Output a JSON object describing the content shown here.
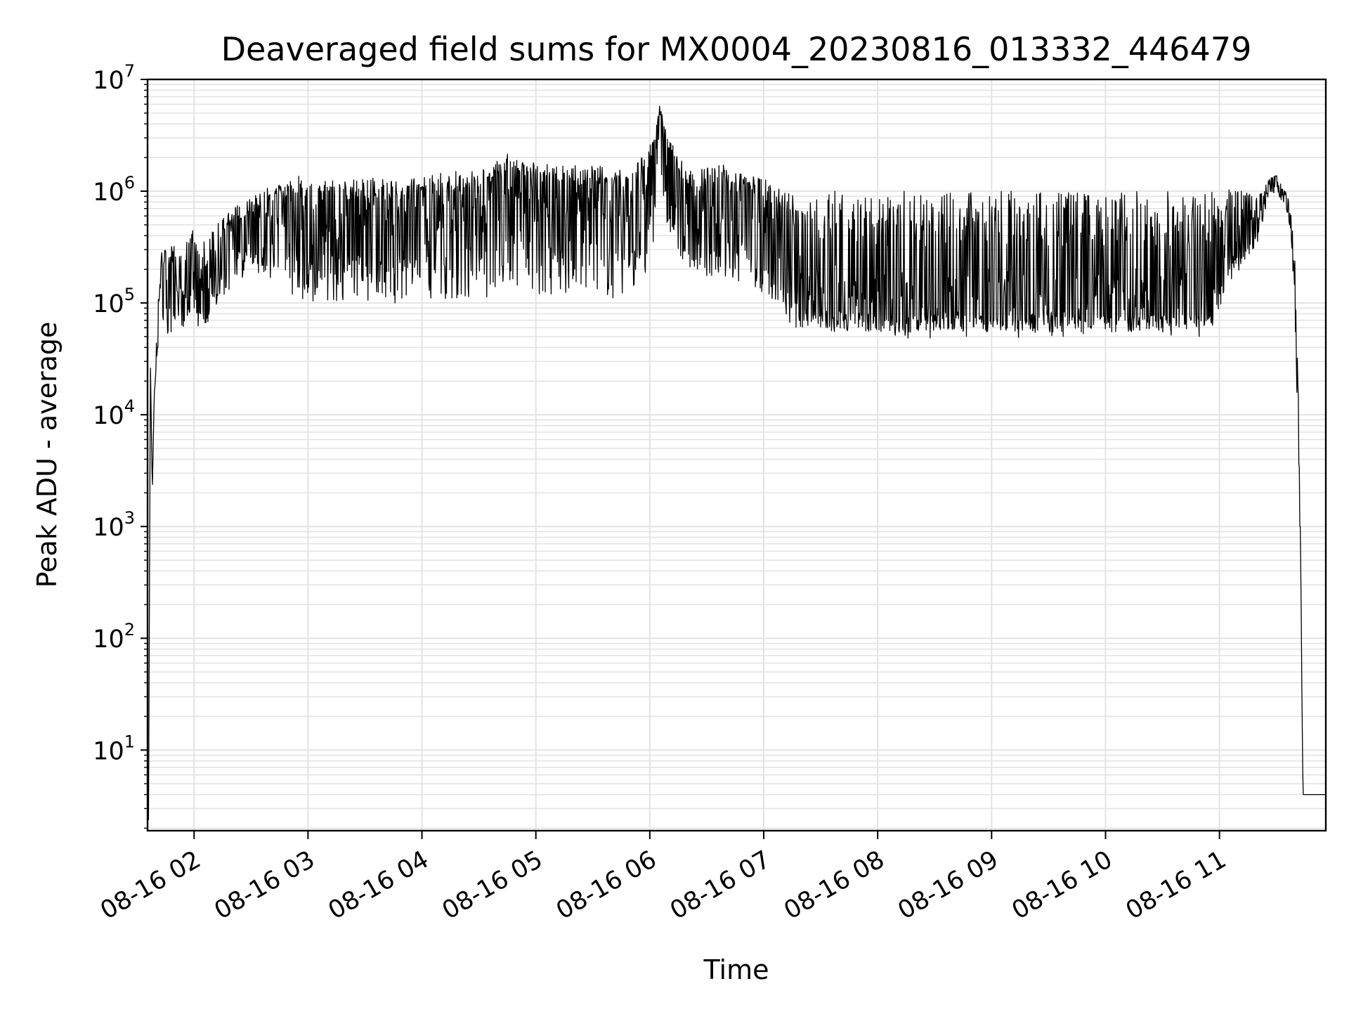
{
  "chart_data": {
    "type": "line",
    "title": "Deaveraged field sums for MX0004_20230816_013332_446479",
    "xlabel": "Time",
    "ylabel": "Peak ADU - average",
    "yscale": "log",
    "xlim": [
      "2023-08-16 01:35:30",
      "2023-08-16 11:56:00"
    ],
    "ylim": [
      1.9,
      10000000
    ],
    "grid": true,
    "line_color": "#000000",
    "x_ticks": [
      "08-16 02",
      "08-16 03",
      "08-16 04",
      "08-16 05",
      "08-16 06",
      "08-16 07",
      "08-16 08",
      "08-16 09",
      "08-16 10",
      "08-16 11"
    ],
    "y_ticks": [
      {
        "base": "10",
        "exp": "1"
      },
      {
        "base": "10",
        "exp": "2"
      },
      {
        "base": "10",
        "exp": "3"
      },
      {
        "base": "10",
        "exp": "4"
      },
      {
        "base": "10",
        "exp": "5"
      },
      {
        "base": "10",
        "exp": "6"
      },
      {
        "base": "10",
        "exp": "7"
      }
    ],
    "series": [
      {
        "x": [
          "2023-08-16 01:36:00",
          "2023-08-16 01:37:00",
          "2023-08-16 01:38:00",
          "2023-08-16 01:39:00",
          "2023-08-16 01:41:00",
          "2023-08-16 01:43:00",
          "2023-08-16 01:46:00",
          "2023-08-16 01:50:00",
          "2023-08-16 01:54:00",
          "2023-08-16 01:58:00",
          "2023-08-16 02:02:00",
          "2023-08-16 02:06:00",
          "2023-08-16 02:10:00",
          "2023-08-16 02:15:00",
          "2023-08-16 02:20:00",
          "2023-08-16 02:25:00",
          "2023-08-16 02:30:00",
          "2023-08-16 02:40:00",
          "2023-08-16 02:50:00",
          "2023-08-16 03:00:00",
          "2023-08-16 03:10:00",
          "2023-08-16 03:30:00",
          "2023-08-16 04:00:00",
          "2023-08-16 04:30:00",
          "2023-08-16 04:45:00",
          "2023-08-16 05:00:00",
          "2023-08-16 05:30:00",
          "2023-08-16 05:50:00",
          "2023-08-16 06:00:00",
          "2023-08-16 06:05:00",
          "2023-08-16 06:10:00",
          "2023-08-16 06:20:00",
          "2023-08-16 06:40:00",
          "2023-08-16 07:00:00",
          "2023-08-16 07:15:00",
          "2023-08-16 07:30:00",
          "2023-08-16 08:00:00",
          "2023-08-16 09:00:00",
          "2023-08-16 10:00:00",
          "2023-08-16 10:55:00",
          "2023-08-16 11:05:00",
          "2023-08-16 11:15:00",
          "2023-08-16 11:20:00",
          "2023-08-16 11:26:00",
          "2023-08-16 11:30:00",
          "2023-08-16 11:35:00",
          "2023-08-16 11:38:00",
          "2023-08-16 11:40:00",
          "2023-08-16 11:42:00",
          "2023-08-16 11:44:00",
          "2023-08-16 11:46:00",
          "2023-08-16 11:48:00",
          "2023-08-16 11:50:00",
          "2023-08-16 11:52:00",
          "2023-08-16 11:54:00",
          "2023-08-16 11:56:00"
        ],
        "y": [
          2,
          30000,
          2000,
          15000,
          60000,
          250000,
          120000,
          150000,
          100000,
          300000,
          120000,
          80000,
          150000,
          300000,
          400000,
          350000,
          500000,
          600000,
          700000,
          800000,
          600000,
          500000,
          550000,
          700000,
          1200000,
          900000,
          800000,
          700000,
          1000000,
          4000000,
          2000000,
          700000,
          800000,
          600000,
          150000,
          120000,
          100000,
          100000,
          100000,
          100000,
          300000,
          400000,
          500000,
          1200000,
          1300000,
          900000,
          500000,
          100000,
          5000,
          4,
          4,
          4,
          4,
          4,
          4,
          4
        ],
        "band_low": [
          2,
          30000,
          2000,
          15000,
          40000,
          80000,
          40000,
          60000,
          60000,
          80000,
          60000,
          60000,
          80000,
          100000,
          150000,
          150000,
          200000,
          150000,
          120000,
          100000,
          100000,
          100000,
          100000,
          100000,
          150000,
          120000,
          120000,
          100000,
          200000,
          800000,
          400000,
          200000,
          150000,
          120000,
          60000,
          55000,
          55000,
          55000,
          55000,
          55000,
          150000,
          250000,
          350000,
          900000,
          1000000,
          700000,
          300000,
          50000,
          2000,
          4,
          4,
          4,
          4,
          4,
          4,
          4
        ],
        "band_high": [
          2,
          30000,
          2000,
          15000,
          100000,
          300000,
          300000,
          350000,
          250000,
          500000,
          400000,
          350000,
          450000,
          600000,
          700000,
          800000,
          900000,
          1100000,
          1200000,
          1300000,
          1300000,
          1300000,
          1400000,
          1600000,
          2000000,
          1800000,
          1700000,
          1600000,
          2500000,
          6000000,
          3000000,
          1500000,
          1800000,
          1300000,
          1100000,
          1000000,
          1000000,
          1000000,
          1000000,
          1000000,
          1100000,
          1100000,
          900000,
          1300000,
          1400000,
          1000000,
          700000,
          200000,
          10000,
          4,
          4,
          4,
          4,
          4,
          4,
          4
        ]
      }
    ]
  }
}
